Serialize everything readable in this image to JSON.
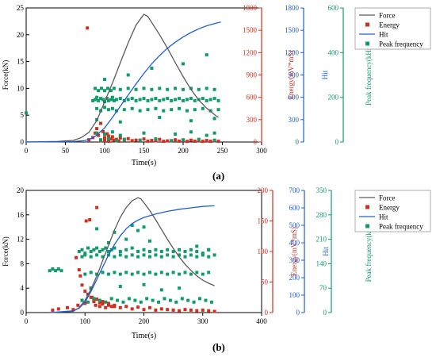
{
  "colors": {
    "force": "#5a5a5a",
    "energy": "#d22e1e",
    "hit": "#1f5fd4",
    "peak": "#0e9d6a",
    "axis": "#000000"
  },
  "panel_labels": [
    "(a)",
    "(b)"
  ],
  "chart_data": [
    {
      "type": "scatter",
      "panel": "(a)",
      "xlabel": "Time(s)",
      "xlim": [
        0,
        300
      ],
      "xticks": [
        "0",
        "50",
        "100",
        "150",
        "200",
        "250",
        "300"
      ],
      "legend": [
        "Force",
        "Energy",
        "Hit",
        "Peak frequency"
      ],
      "legend_position": "top-right",
      "axes": [
        {
          "label": "Force(kN)",
          "lim": [
            0,
            25
          ],
          "ticks": [
            "0",
            "5",
            "10",
            "15",
            "20",
            "25"
          ]
        },
        {
          "label": "Energy(mV*mS)",
          "lim": [
            0,
            1800
          ],
          "ticks": [
            "0",
            "300",
            "600",
            "900",
            "1200",
            "1500",
            "1800"
          ]
        },
        {
          "label": "Hit",
          "lim": [
            0,
            1800
          ],
          "ticks": [
            "0",
            "300",
            "600",
            "900",
            "1200",
            "1500",
            "1800"
          ]
        },
        {
          "label": "Peak frequency(kHz)",
          "lim": [
            0,
            600
          ],
          "ticks": [
            "0",
            "200",
            "400",
            "600"
          ]
        }
      ],
      "series": [
        {
          "name": "Force",
          "kind": "line",
          "axis": 0,
          "x": [
            0,
            40,
            60,
            70,
            80,
            90,
            100,
            110,
            120,
            130,
            140,
            150,
            155,
            160,
            170,
            180,
            190,
            200,
            210,
            220,
            230,
            240,
            245
          ],
          "y": [
            0,
            0.1,
            0.3,
            0.8,
            1.8,
            4.0,
            7.5,
            11.0,
            14.8,
            18.5,
            21.8,
            23.8,
            23.4,
            22.3,
            20.0,
            17.5,
            14.8,
            12.2,
            9.8,
            7.8,
            6.3,
            5.1,
            4.6
          ]
        },
        {
          "name": "Hit",
          "kind": "line",
          "axis": 2,
          "x": [
            0,
            60,
            75,
            85,
            90,
            100,
            110,
            120,
            130,
            140,
            150,
            160,
            170,
            180,
            190,
            200,
            210,
            220,
            230,
            240,
            248
          ],
          "y": [
            0,
            5,
            20,
            55,
            95,
            190,
            330,
            480,
            630,
            780,
            920,
            1050,
            1160,
            1260,
            1340,
            1410,
            1470,
            1520,
            1560,
            1590,
            1610
          ]
        },
        {
          "name": "Energy",
          "kind": "scatter",
          "axis": 1,
          "x": [
            80,
            85,
            88,
            90,
            92,
            95,
            98,
            100,
            103,
            105,
            108,
            110,
            115,
            120,
            125,
            130,
            140,
            150,
            160,
            170,
            180,
            190,
            200,
            210,
            220,
            230,
            240,
            245,
            95,
            100,
            105,
            112,
            118,
            135,
            145,
            155,
            165,
            175,
            185,
            195,
            205,
            215,
            225,
            235,
            78
          ],
          "y": [
            30,
            60,
            120,
            180,
            90,
            250,
            140,
            60,
            110,
            80,
            40,
            70,
            35,
            55,
            30,
            45,
            25,
            40,
            20,
            35,
            15,
            30,
            20,
            25,
            15,
            20,
            18,
            10,
            15,
            20,
            10,
            25,
            12,
            18,
            22,
            12,
            16,
            10,
            14,
            12,
            9,
            11,
            8,
            10,
            1530
          ]
        },
        {
          "name": "Peak frequency",
          "kind": "scatter",
          "axis": 3,
          "x": [
            85,
            88,
            90,
            92,
            95,
            98,
            100,
            103,
            105,
            108,
            110,
            112,
            115,
            120,
            125,
            130,
            135,
            140,
            145,
            150,
            155,
            160,
            165,
            170,
            175,
            180,
            185,
            190,
            195,
            200,
            205,
            210,
            215,
            220,
            225,
            230,
            235,
            240,
            245,
            88,
            92,
            96,
            100,
            104,
            108,
            112,
            120,
            130,
            140,
            150,
            160,
            170,
            180,
            190,
            200,
            210,
            220,
            230,
            240,
            90,
            95,
            100,
            105,
            110,
            115,
            125,
            135,
            145,
            155,
            165,
            175,
            185,
            195,
            205,
            215,
            225,
            235,
            245,
            90,
            100,
            110,
            120,
            150,
            190,
            210,
            230,
            240,
            95,
            105,
            115,
            125,
            145,
            165,
            185,
            200,
            220,
            240,
            100,
            130,
            160,
            200,
            230,
            90,
            120,
            170,
            210,
            240,
            0
          ],
          "y": [
            185,
            190,
            200,
            185,
            195,
            190,
            180,
            195,
            185,
            190,
            200,
            185,
            190,
            195,
            185,
            190,
            195,
            185,
            190,
            195,
            185,
            190,
            195,
            185,
            190,
            195,
            185,
            190,
            195,
            185,
            190,
            195,
            185,
            190,
            195,
            185,
            190,
            195,
            185,
            240,
            230,
            240,
            230,
            240,
            230,
            240,
            235,
            240,
            235,
            240,
            235,
            240,
            235,
            240,
            235,
            240,
            235,
            240,
            235,
            150,
            140,
            155,
            145,
            150,
            140,
            145,
            150,
            140,
            145,
            150,
            140,
            145,
            150,
            140,
            145,
            150,
            140,
            145,
            40,
            35,
            45,
            30,
            40,
            35,
            45,
            30,
            40,
            10,
            15,
            5,
            12,
            8,
            14,
            6,
            10,
            12,
            8,
            280,
            300,
            330,
            350,
            390,
            100,
            90,
            110,
            95,
            105,
            130
          ]
        }
      ]
    },
    {
      "type": "scatter",
      "panel": "(b)",
      "xlabel": "Time(s)",
      "xlim": [
        0,
        400
      ],
      "xticks": [
        "0",
        "100",
        "200",
        "300",
        "400"
      ],
      "legend": [
        "Force",
        "Energy",
        "Hit",
        "Peak frequency"
      ],
      "legend_position": "top-right",
      "axes": [
        {
          "label": "Force(kN)",
          "lim": [
            0,
            20
          ],
          "ticks": [
            "0",
            "4",
            "8",
            "12",
            "16",
            "20"
          ]
        },
        {
          "label": "Energy(mV*mS)",
          "lim": [
            0,
            200
          ],
          "ticks": [
            "0",
            "50",
            "100",
            "150",
            "200"
          ]
        },
        {
          "label": "Hit",
          "lim": [
            0,
            700
          ],
          "ticks": [
            "0",
            "100",
            "200",
            "300",
            "400",
            "500",
            "600",
            "700"
          ]
        },
        {
          "label": "Peak frequency(kHz)",
          "lim": [
            0,
            350
          ],
          "ticks": [
            "0",
            "70",
            "140",
            "210",
            "280",
            "350"
          ]
        }
      ],
      "series": [
        {
          "name": "Force",
          "kind": "line",
          "axis": 0,
          "x": [
            40,
            80,
            90,
            100,
            110,
            120,
            130,
            140,
            150,
            160,
            170,
            180,
            190,
            195,
            200,
            210,
            220,
            230,
            240,
            250,
            260,
            270,
            280,
            290,
            300,
            310,
            320
          ],
          "y": [
            0,
            0.2,
            0.8,
            2.0,
            3.8,
            6.0,
            8.5,
            11.0,
            13.5,
            15.6,
            17.2,
            18.3,
            18.8,
            18.6,
            18.0,
            16.7,
            15.2,
            13.6,
            12.0,
            10.5,
            9.1,
            7.9,
            6.9,
            6.0,
            5.3,
            4.8,
            4.4
          ]
        },
        {
          "name": "Hit",
          "kind": "line",
          "axis": 2,
          "x": [
            40,
            80,
            90,
            100,
            110,
            120,
            130,
            140,
            150,
            160,
            170,
            180,
            190,
            200,
            220,
            240,
            260,
            280,
            300,
            320
          ],
          "y": [
            0,
            10,
            25,
            60,
            120,
            190,
            260,
            330,
            390,
            440,
            480,
            510,
            530,
            545,
            565,
            580,
            592,
            600,
            608,
            612
          ]
        },
        {
          "name": "Energy",
          "kind": "scatter",
          "axis": 1,
          "x": [
            45,
            55,
            70,
            80,
            88,
            92,
            95,
            100,
            102,
            105,
            108,
            110,
            112,
            115,
            118,
            120,
            125,
            130,
            135,
            140,
            145,
            150,
            160,
            170,
            180,
            190,
            200,
            210,
            220,
            230,
            240,
            250,
            260,
            270,
            280,
            290,
            300,
            310,
            320,
            100,
            110,
            115,
            120,
            125,
            130,
            140,
            150,
            90,
            95,
            85
          ],
          "y": [
            4,
            6,
            8,
            5,
            12,
            60,
            20,
            15,
            150,
            30,
            152,
            40,
            25,
            20,
            12,
            172,
            10,
            18,
            8,
            15,
            10,
            12,
            8,
            10,
            6,
            9,
            5,
            8,
            4,
            6,
            5,
            4,
            3,
            5,
            4,
            3,
            4,
            3,
            2,
            35,
            25,
            18,
            22,
            16,
            14,
            12,
            10,
            70,
            45,
            90
          ]
        },
        {
          "name": "Peak frequency",
          "kind": "scatter",
          "axis": 3,
          "x": [
            40,
            45,
            50,
            55,
            60,
            90,
            95,
            100,
            105,
            110,
            115,
            120,
            125,
            130,
            135,
            140,
            145,
            150,
            160,
            170,
            180,
            190,
            200,
            210,
            220,
            230,
            240,
            250,
            260,
            270,
            280,
            290,
            300,
            310,
            95,
            100,
            110,
            120,
            130,
            140,
            150,
            160,
            170,
            180,
            190,
            200,
            210,
            220,
            230,
            240,
            250,
            260,
            270,
            280,
            290,
            300,
            310,
            320,
            100,
            110,
            120,
            130,
            140,
            150,
            160,
            170,
            180,
            190,
            200,
            210,
            220,
            230,
            240,
            250,
            260,
            270,
            280,
            290,
            300,
            310,
            95,
            105,
            115,
            125,
            135,
            145,
            155,
            165,
            175,
            185,
            195,
            205,
            215,
            225,
            235,
            245,
            255,
            265,
            275,
            285,
            295,
            305,
            315,
            120,
            150,
            180,
            190,
            200,
            140,
            170,
            210,
            290,
            310,
            110,
            160,
            200,
            230,
            260
          ],
          "y": [
            120,
            125,
            120,
            125,
            120,
            175,
            180,
            170,
            185,
            175,
            180,
            185,
            175,
            180,
            185,
            175,
            180,
            185,
            175,
            180,
            185,
            175,
            180,
            175,
            180,
            175,
            180,
            175,
            180,
            175,
            180,
            175,
            170,
            180,
            160,
            165,
            160,
            165,
            160,
            165,
            160,
            165,
            160,
            165,
            160,
            165,
            160,
            165,
            160,
            165,
            160,
            165,
            160,
            165,
            160,
            165,
            160,
            165,
            110,
            115,
            110,
            115,
            110,
            115,
            110,
            115,
            110,
            115,
            110,
            115,
            110,
            115,
            110,
            115,
            110,
            115,
            110,
            115,
            110,
            115,
            35,
            30,
            40,
            35,
            30,
            40,
            35,
            30,
            40,
            35,
            30,
            40,
            35,
            30,
            40,
            35,
            30,
            40,
            35,
            30,
            40,
            35,
            30,
            240,
            230,
            250,
            235,
            245,
            200,
            210,
            205,
            190,
            180,
            70,
            75,
            80,
            65,
            70
          ]
        }
      ]
    }
  ]
}
